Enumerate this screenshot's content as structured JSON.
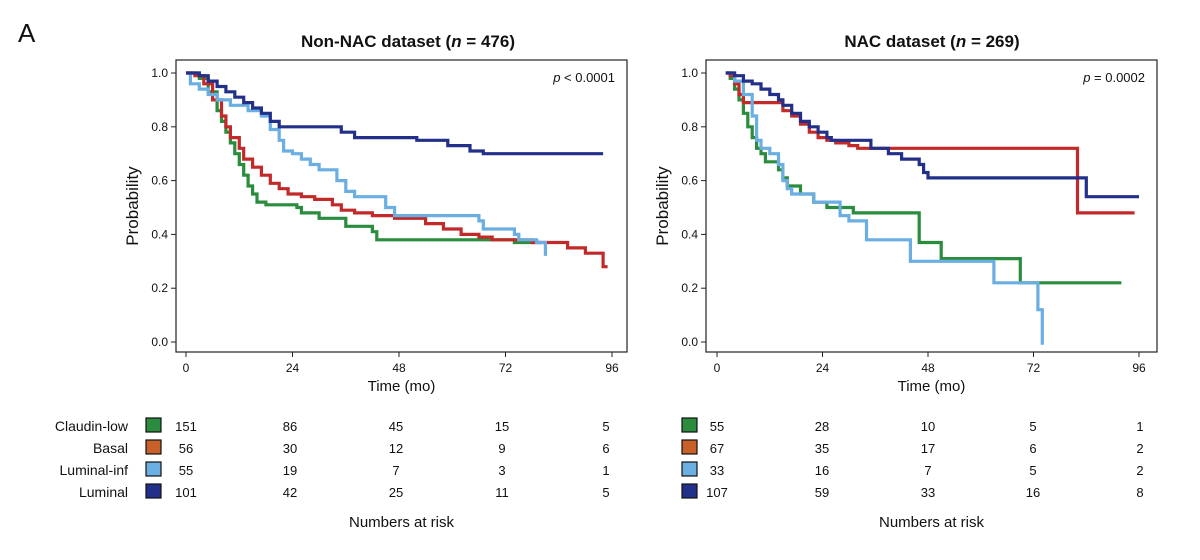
{
  "panel_label": "A",
  "colors": {
    "Claudin-low": "#2a8c3c",
    "Basal": "#c22a2a",
    "Luminal-inf": "#6aaee2",
    "Luminal": "#23308a",
    "Basal_swatch": "#c8602a"
  },
  "risk_table": {
    "title": "Numbers at risk",
    "groups": [
      "Claudin-low",
      "Basal",
      "Luminal-inf",
      "Luminal"
    ]
  },
  "chart_data": [
    {
      "type": "line",
      "subtype": "kaplan-meier",
      "title_prefix": "Non-NAC dataset (",
      "title_n": "n",
      "title_suffix": " = 476)",
      "pvalue_p": "p",
      "pvalue_rest": " < 0.0001",
      "xlabel": "Time (mo)",
      "ylabel": "Probability",
      "xlim": [
        0,
        96
      ],
      "ylim": [
        0,
        1
      ],
      "xticks": [
        0,
        24,
        48,
        72,
        96
      ],
      "yticks": [
        "0.0",
        "0.2",
        "0.4",
        "0.6",
        "0.8",
        "1.0"
      ],
      "series": [
        {
          "name": "Claudin-low",
          "color": "#2a8c3c",
          "points": [
            [
              0,
              1.0
            ],
            [
              2,
              1.0
            ],
            [
              3,
              0.98
            ],
            [
              5,
              0.93
            ],
            [
              7,
              0.86
            ],
            [
              8,
              0.82
            ],
            [
              9,
              0.78
            ],
            [
              10,
              0.74
            ],
            [
              11,
              0.7
            ],
            [
              12,
              0.66
            ],
            [
              13,
              0.62
            ],
            [
              14,
              0.58
            ],
            [
              15,
              0.55
            ],
            [
              16,
              0.52
            ],
            [
              18,
              0.51
            ],
            [
              25,
              0.5
            ],
            [
              26,
              0.48
            ],
            [
              30,
              0.46
            ],
            [
              36,
              0.43
            ],
            [
              42,
              0.41
            ],
            [
              43,
              0.38
            ],
            [
              60,
              0.38
            ],
            [
              68,
              0.38
            ],
            [
              74,
              0.37
            ],
            [
              80,
              0.37
            ]
          ]
        },
        {
          "name": "Basal",
          "color": "#c22a2a",
          "points": [
            [
              0,
              1.0
            ],
            [
              2,
              0.99
            ],
            [
              4,
              0.96
            ],
            [
              6,
              0.9
            ],
            [
              8,
              0.84
            ],
            [
              9,
              0.8
            ],
            [
              10,
              0.76
            ],
            [
              12,
              0.72
            ],
            [
              13,
              0.68
            ],
            [
              15,
              0.65
            ],
            [
              17,
              0.62
            ],
            [
              19,
              0.59
            ],
            [
              21,
              0.57
            ],
            [
              23,
              0.55
            ],
            [
              26,
              0.54
            ],
            [
              29,
              0.53
            ],
            [
              33,
              0.51
            ],
            [
              35,
              0.49
            ],
            [
              38,
              0.48
            ],
            [
              42,
              0.47
            ],
            [
              47,
              0.46
            ],
            [
              54,
              0.44
            ],
            [
              58,
              0.42
            ],
            [
              62,
              0.4
            ],
            [
              66,
              0.39
            ],
            [
              69,
              0.38
            ],
            [
              78,
              0.37
            ],
            [
              86,
              0.35
            ],
            [
              90,
              0.33
            ],
            [
              94,
              0.28
            ],
            [
              95,
              0.28
            ]
          ]
        },
        {
          "name": "Luminal-inf",
          "color": "#6aaee2",
          "points": [
            [
              0,
              1.0
            ],
            [
              1,
              0.96
            ],
            [
              3,
              0.94
            ],
            [
              5,
              0.92
            ],
            [
              7,
              0.9
            ],
            [
              10,
              0.88
            ],
            [
              14,
              0.86
            ],
            [
              17,
              0.84
            ],
            [
              19,
              0.79
            ],
            [
              21,
              0.75
            ],
            [
              22,
              0.71
            ],
            [
              24,
              0.7
            ],
            [
              26,
              0.68
            ],
            [
              28,
              0.66
            ],
            [
              30,
              0.64
            ],
            [
              34,
              0.6
            ],
            [
              36,
              0.56
            ],
            [
              38,
              0.54
            ],
            [
              44,
              0.54
            ],
            [
              45,
              0.5
            ],
            [
              47,
              0.47
            ],
            [
              52,
              0.47
            ],
            [
              56,
              0.47
            ],
            [
              65,
              0.47
            ],
            [
              66,
              0.45
            ],
            [
              67,
              0.42
            ],
            [
              74,
              0.4
            ],
            [
              75,
              0.38
            ],
            [
              79,
              0.37
            ],
            [
              81,
              0.37
            ],
            [
              81,
              0.32
            ]
          ]
        },
        {
          "name": "Luminal",
          "color": "#23308a",
          "points": [
            [
              0,
              1.0
            ],
            [
              3,
              0.99
            ],
            [
              5,
              0.97
            ],
            [
              7,
              0.95
            ],
            [
              9,
              0.93
            ],
            [
              11,
              0.91
            ],
            [
              13,
              0.89
            ],
            [
              15,
              0.87
            ],
            [
              17,
              0.85
            ],
            [
              19,
              0.82
            ],
            [
              21,
              0.8
            ],
            [
              30,
              0.8
            ],
            [
              35,
              0.78
            ],
            [
              38,
              0.76
            ],
            [
              47,
              0.76
            ],
            [
              52,
              0.75
            ],
            [
              59,
              0.73
            ],
            [
              64,
              0.71
            ],
            [
              67,
              0.7
            ],
            [
              72,
              0.7
            ],
            [
              86,
              0.7
            ],
            [
              94,
              0.7
            ]
          ]
        }
      ],
      "risk_times": [
        0,
        24,
        48,
        72,
        96
      ],
      "risk": {
        "Claudin-low": [
          "151",
          "86",
          "45",
          "15",
          "5"
        ],
        "Basal": [
          "56",
          "30",
          "12",
          "9",
          "6"
        ],
        "Luminal-inf": [
          "55",
          "19",
          "7",
          "3",
          "1"
        ],
        "Luminal": [
          "101",
          "42",
          "25",
          "11",
          "5"
        ]
      }
    },
    {
      "type": "line",
      "subtype": "kaplan-meier",
      "title_prefix": "NAC dataset (",
      "title_n": "n",
      "title_suffix": " = 269)",
      "pvalue_p": "p",
      "pvalue_rest": " = 0.0002",
      "xlabel": "Time (mo)",
      "ylabel": "Probability",
      "xlim": [
        0,
        96
      ],
      "ylim": [
        0,
        1
      ],
      "xticks": [
        0,
        24,
        48,
        72,
        96
      ],
      "yticks": [
        "0.0",
        "0.2",
        "0.4",
        "0.6",
        "0.8",
        "1.0"
      ],
      "series": [
        {
          "name": "Claudin-low",
          "color": "#2a8c3c",
          "points": [
            [
              2,
              1.0
            ],
            [
              3,
              0.98
            ],
            [
              4,
              0.94
            ],
            [
              5,
              0.9
            ],
            [
              6,
              0.85
            ],
            [
              7,
              0.8
            ],
            [
              8,
              0.76
            ],
            [
              9,
              0.72
            ],
            [
              10,
              0.7
            ],
            [
              11,
              0.67
            ],
            [
              14,
              0.64
            ],
            [
              15,
              0.61
            ],
            [
              16,
              0.58
            ],
            [
              19,
              0.55
            ],
            [
              22,
              0.52
            ],
            [
              25,
              0.5
            ],
            [
              30,
              0.5
            ],
            [
              31,
              0.48
            ],
            [
              45,
              0.48
            ],
            [
              46,
              0.37
            ],
            [
              50,
              0.37
            ],
            [
              51,
              0.31
            ],
            [
              68,
              0.31
            ],
            [
              69,
              0.22
            ],
            [
              80,
              0.22
            ],
            [
              92,
              0.22
            ]
          ]
        },
        {
          "name": "Basal",
          "color": "#c22a2a",
          "points": [
            [
              2,
              1.0
            ],
            [
              3,
              0.99
            ],
            [
              4,
              0.96
            ],
            [
              5,
              0.92
            ],
            [
              6,
              0.89
            ],
            [
              14,
              0.89
            ],
            [
              15,
              0.86
            ],
            [
              17,
              0.84
            ],
            [
              19,
              0.81
            ],
            [
              21,
              0.78
            ],
            [
              23,
              0.76
            ],
            [
              25,
              0.75
            ],
            [
              27,
              0.74
            ],
            [
              30,
              0.73
            ],
            [
              32,
              0.72
            ],
            [
              82,
              0.72
            ],
            [
              82,
              0.48
            ],
            [
              95,
              0.48
            ]
          ]
        },
        {
          "name": "Luminal-inf",
          "color": "#6aaee2",
          "points": [
            [
              2,
              1.0
            ],
            [
              4,
              0.97
            ],
            [
              6,
              0.92
            ],
            [
              8,
              0.84
            ],
            [
              9,
              0.75
            ],
            [
              10,
              0.72
            ],
            [
              12,
              0.7
            ],
            [
              14,
              0.66
            ],
            [
              15,
              0.6
            ],
            [
              16,
              0.57
            ],
            [
              17,
              0.55
            ],
            [
              20,
              0.55
            ],
            [
              22,
              0.52
            ],
            [
              27,
              0.52
            ],
            [
              28,
              0.47
            ],
            [
              30,
              0.45
            ],
            [
              33,
              0.45
            ],
            [
              34,
              0.38
            ],
            [
              44,
              0.38
            ],
            [
              44,
              0.3
            ],
            [
              62,
              0.3
            ],
            [
              63,
              0.22
            ],
            [
              72,
              0.22
            ],
            [
              73,
              0.12
            ],
            [
              74,
              0.05
            ],
            [
              74,
              -0.01
            ]
          ]
        },
        {
          "name": "Luminal",
          "color": "#23308a",
          "points": [
            [
              2,
              1.0
            ],
            [
              4,
              0.99
            ],
            [
              6,
              0.97
            ],
            [
              8,
              0.96
            ],
            [
              10,
              0.94
            ],
            [
              12,
              0.92
            ],
            [
              14,
              0.9
            ],
            [
              15,
              0.88
            ],
            [
              17,
              0.85
            ],
            [
              19,
              0.82
            ],
            [
              21,
              0.8
            ],
            [
              23,
              0.78
            ],
            [
              25,
              0.76
            ],
            [
              26,
              0.75
            ],
            [
              35,
              0.72
            ],
            [
              39,
              0.7
            ],
            [
              42,
              0.68
            ],
            [
              46,
              0.66
            ],
            [
              47,
              0.63
            ],
            [
              48,
              0.61
            ],
            [
              82,
              0.61
            ],
            [
              84,
              0.54
            ],
            [
              96,
              0.54
            ]
          ]
        }
      ],
      "risk_times": [
        0,
        24,
        48,
        72,
        96
      ],
      "risk": {
        "Claudin-low": [
          "55",
          "28",
          "10",
          "5",
          "1"
        ],
        "Basal": [
          "67",
          "35",
          "17",
          "6",
          "2"
        ],
        "Luminal-inf": [
          "33",
          "16",
          "7",
          "5",
          "2"
        ],
        "Luminal": [
          "107",
          "59",
          "33",
          "16",
          "8"
        ]
      }
    }
  ]
}
